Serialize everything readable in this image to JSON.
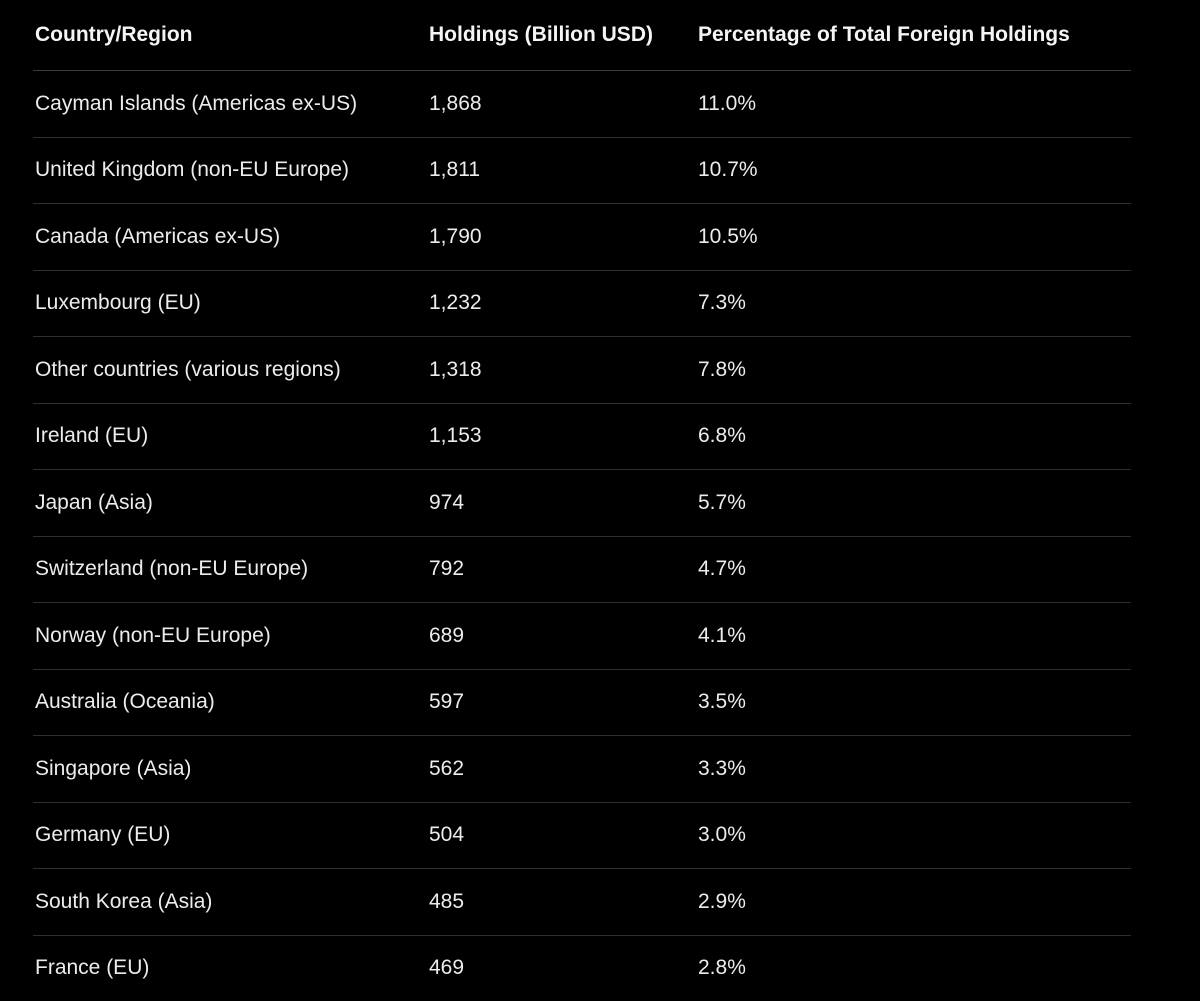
{
  "table": {
    "headers": [
      "Country/Region",
      "Holdings (Billion USD)",
      "Percentage of Total Foreign Holdings"
    ],
    "rows": [
      [
        "Cayman Islands (Americas ex-US)",
        "1,868",
        "11.0%"
      ],
      [
        "United Kingdom (non-EU Europe)",
        "1,811",
        "10.7%"
      ],
      [
        "Canada (Americas ex-US)",
        "1,790",
        "10.5%"
      ],
      [
        "Luxembourg (EU)",
        "1,232",
        "7.3%"
      ],
      [
        "Other countries (various regions)",
        "1,318",
        "7.8%"
      ],
      [
        "Ireland (EU)",
        "1,153",
        "6.8%"
      ],
      [
        "Japan (Asia)",
        "974",
        "5.7%"
      ],
      [
        "Switzerland (non-EU Europe)",
        "792",
        "4.7%"
      ],
      [
        "Norway (non-EU Europe)",
        "689",
        "4.1%"
      ],
      [
        "Australia (Oceania)",
        "597",
        "3.5%"
      ],
      [
        "Singapore (Asia)",
        "562",
        "3.3%"
      ],
      [
        "Germany (EU)",
        "504",
        "3.0%"
      ],
      [
        "South Korea (Asia)",
        "485",
        "2.9%"
      ],
      [
        "France (EU)",
        "469",
        "2.8%"
      ]
    ]
  },
  "colors": {
    "background": "#000000",
    "text": "#ececec",
    "divider": "#2e2e2e"
  }
}
